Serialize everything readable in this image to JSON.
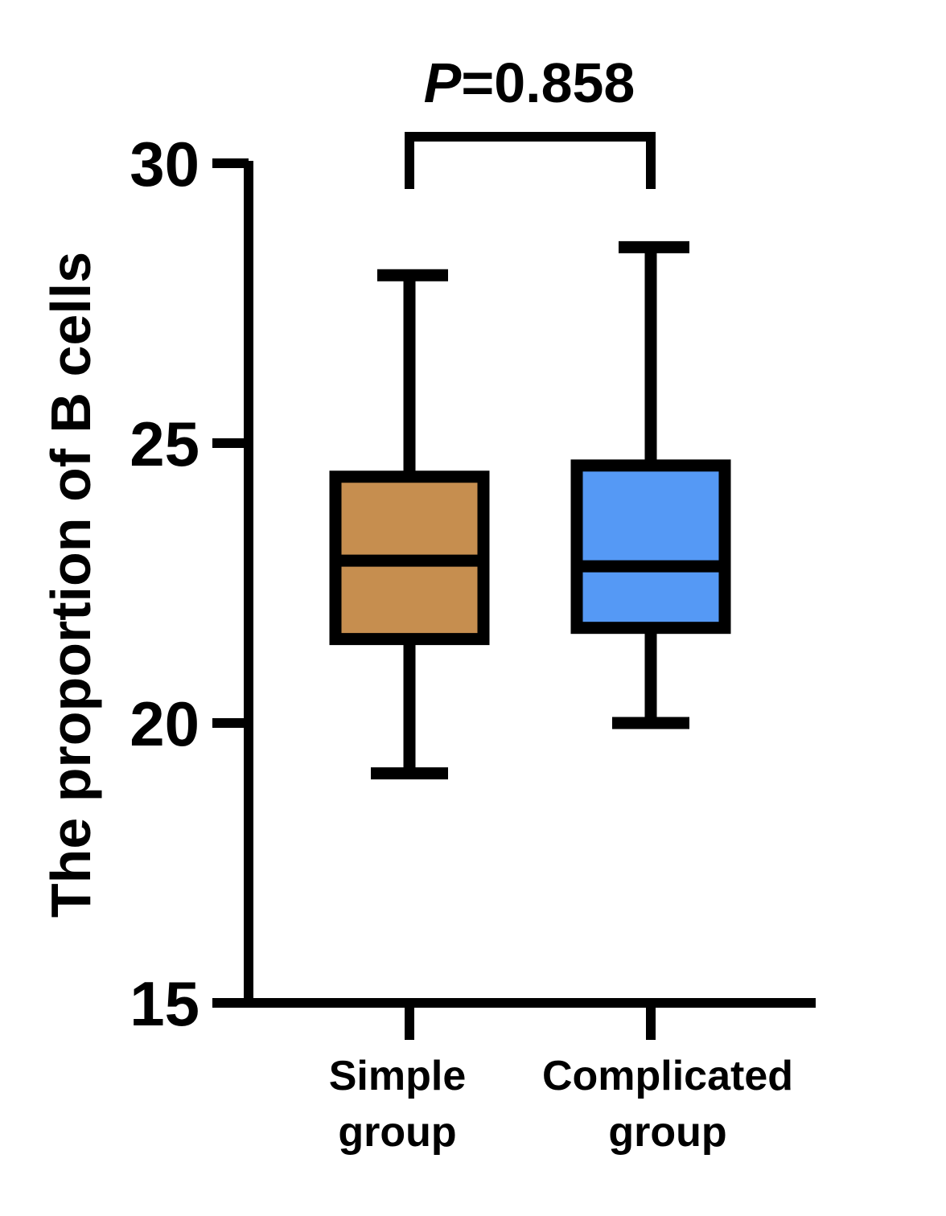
{
  "chart_data": {
    "type": "box",
    "title": "",
    "ylabel": "The proportion of B cells",
    "xlabel": "",
    "ylim": [
      15,
      30
    ],
    "yticks": [
      "15",
      "20",
      "25",
      "30"
    ],
    "grid": false,
    "groups": [
      {
        "label_lines": [
          "Simple",
          "group"
        ],
        "min": 19.1,
        "q1": 21.5,
        "median": 22.9,
        "q3": 24.4,
        "max": 28.0,
        "color": "#C68E4F"
      },
      {
        "label_lines": [
          "Complicated",
          "group"
        ],
        "min": 20.0,
        "q1": 21.7,
        "median": 22.8,
        "q3": 24.6,
        "max": 28.5,
        "color": "#5599F5"
      }
    ],
    "annotation": {
      "italic_part": "P",
      "rest": "=0.858"
    }
  }
}
